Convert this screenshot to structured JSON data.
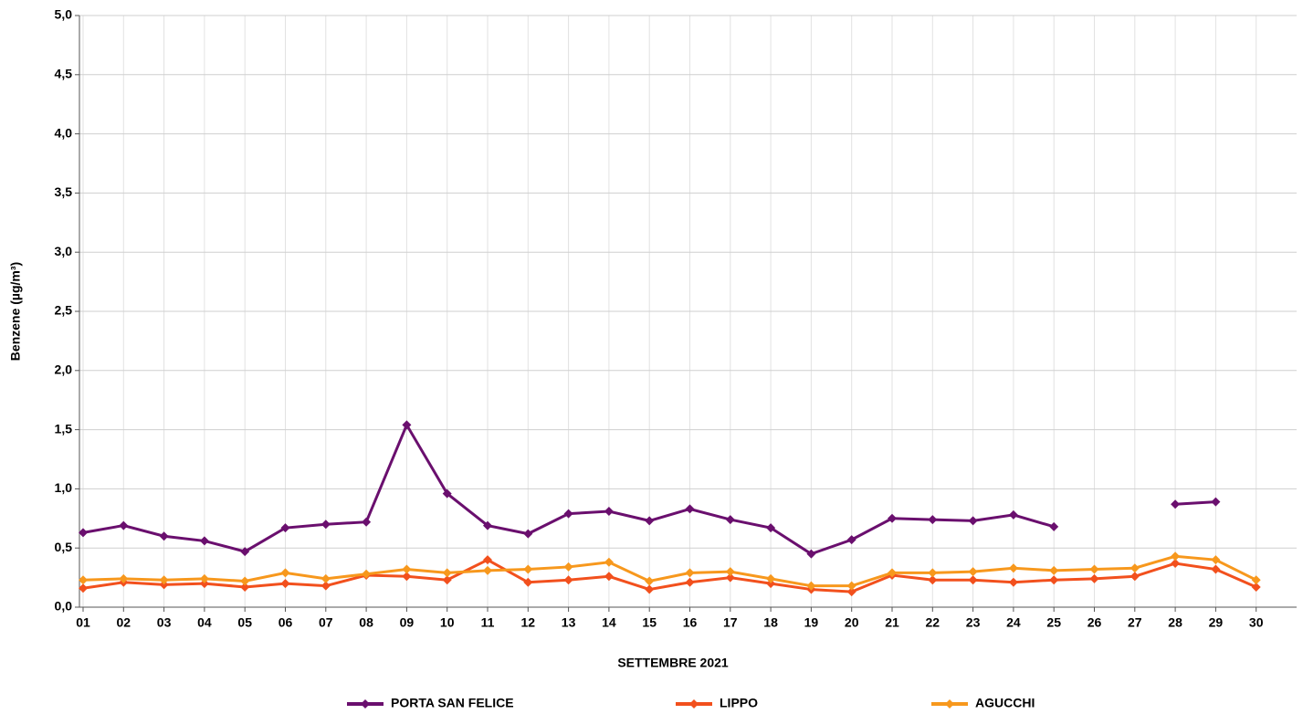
{
  "chart_data": {
    "type": "line",
    "x_label": "SETTEMBRE 2021",
    "y_label": "Benzene (µg/m³)",
    "categories": [
      "01",
      "02",
      "03",
      "04",
      "05",
      "06",
      "07",
      "08",
      "09",
      "10",
      "11",
      "12",
      "13",
      "14",
      "15",
      "16",
      "17",
      "18",
      "19",
      "20",
      "21",
      "22",
      "23",
      "24",
      "25",
      "26",
      "27",
      "28",
      "29",
      "30"
    ],
    "series": [
      {
        "name": "PORTA SAN FELICE",
        "color": "#6a0f6e",
        "values": [
          0.63,
          0.69,
          0.6,
          0.56,
          0.47,
          0.67,
          0.7,
          0.72,
          1.54,
          0.96,
          0.69,
          0.62,
          0.79,
          0.81,
          0.73,
          0.83,
          0.74,
          0.67,
          0.45,
          0.57,
          0.75,
          0.74,
          0.73,
          0.78,
          0.68,
          null,
          null,
          0.87,
          0.89,
          null
        ]
      },
      {
        "name": "LIPPO",
        "color": "#f2501d",
        "values": [
          0.16,
          0.21,
          0.19,
          0.2,
          0.17,
          0.2,
          0.18,
          0.27,
          0.26,
          0.23,
          0.4,
          0.21,
          0.23,
          0.26,
          0.15,
          0.21,
          0.25,
          0.2,
          0.15,
          0.13,
          0.27,
          0.23,
          0.23,
          0.21,
          0.23,
          0.24,
          0.26,
          0.37,
          0.32,
          0.17
        ]
      },
      {
        "name": "AGUCCHI",
        "color": "#f7981d",
        "values": [
          0.23,
          0.24,
          0.23,
          0.24,
          0.22,
          0.29,
          0.24,
          0.28,
          0.32,
          0.29,
          0.31,
          0.32,
          0.34,
          0.38,
          0.22,
          0.29,
          0.3,
          0.24,
          0.18,
          0.18,
          0.29,
          0.29,
          0.3,
          0.33,
          0.31,
          0.32,
          0.33,
          0.43,
          0.4,
          0.23
        ]
      }
    ],
    "ylim": [
      0,
      5
    ],
    "yticks": [
      {
        "value": 0,
        "label": "0,0"
      },
      {
        "value": 0.5,
        "label": "0,5"
      },
      {
        "value": 1,
        "label": "1,0"
      },
      {
        "value": 1.5,
        "label": "1,5"
      },
      {
        "value": 2,
        "label": "2,0"
      },
      {
        "value": 2.5,
        "label": "2,5"
      },
      {
        "value": 3,
        "label": "3,0"
      },
      {
        "value": 3.5,
        "label": "3,5"
      },
      {
        "value": 4,
        "label": "4,0"
      },
      {
        "value": 4.5,
        "label": "4,5"
      },
      {
        "value": 5,
        "label": "5,0"
      }
    ],
    "grid": true
  }
}
